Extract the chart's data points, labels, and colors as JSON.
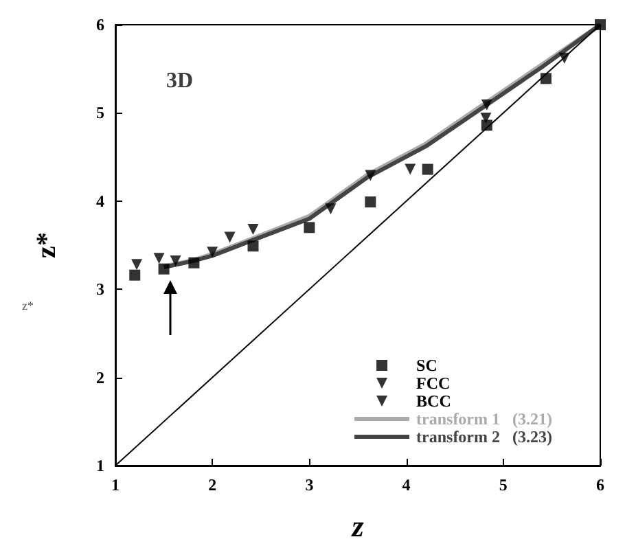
{
  "chart_data": {
    "type": "scatter",
    "title": "3D",
    "xlabel": "z",
    "ylabel": "z*",
    "annotations": [
      "z*"
    ],
    "xlim": [
      1,
      6
    ],
    "ylim": [
      1,
      6
    ],
    "xticks": [
      1,
      2,
      3,
      4,
      5,
      6
    ],
    "yticks": [
      1,
      2,
      3,
      4,
      5,
      6
    ],
    "grid": false,
    "legend": "bottom right",
    "series": [
      {
        "name": "SC",
        "marker": "square",
        "color": "#000000",
        "x": [
          1.2,
          1.5,
          1.81,
          2.42,
          3.0,
          3.63,
          4.22,
          4.83,
          5.44,
          6.0
        ],
        "values": [
          3.16,
          3.23,
          3.3,
          3.49,
          3.7,
          3.99,
          4.36,
          4.86,
          5.39,
          6.0
        ]
      },
      {
        "name": "FCC",
        "marker": "triangle",
        "color": "#000000",
        "x": [
          1.22,
          1.45,
          2.18,
          2.42,
          3.63,
          4.83
        ],
        "values": [
          3.28,
          3.35,
          3.59,
          3.68,
          4.29,
          5.09
        ]
      },
      {
        "name": "BCC",
        "marker": "triangle",
        "color": "#000000",
        "x": [
          1.62,
          2.0,
          3.22,
          4.04,
          4.82,
          5.63
        ],
        "values": [
          3.32,
          3.42,
          3.91,
          4.36,
          4.94,
          5.62
        ]
      },
      {
        "name": "transform 1   (3.21)",
        "type": "line",
        "marker": "none",
        "color": "#aaaaaa",
        "x": [
          1.5,
          1.8,
          2.0,
          2.4,
          3.0,
          3.6,
          4.2,
          4.8,
          5.4,
          6.0
        ],
        "values": [
          3.26,
          3.33,
          3.4,
          3.57,
          3.83,
          4.3,
          4.65,
          5.1,
          5.55,
          6.0
        ]
      },
      {
        "name": "transform 2   (3.23)",
        "type": "line",
        "marker": "none",
        "color": "#444444",
        "x": [
          1.5,
          1.8,
          2.0,
          2.4,
          3.0,
          3.6,
          4.2,
          4.8,
          5.4,
          6.0
        ],
        "values": [
          3.25,
          3.32,
          3.38,
          3.55,
          3.8,
          4.27,
          4.62,
          5.07,
          5.52,
          6.0
        ]
      },
      {
        "type": "line",
        "marker": "none",
        "color": "#000000",
        "x": [
          1,
          6
        ],
        "values": [
          1,
          6
        ]
      }
    ]
  }
}
